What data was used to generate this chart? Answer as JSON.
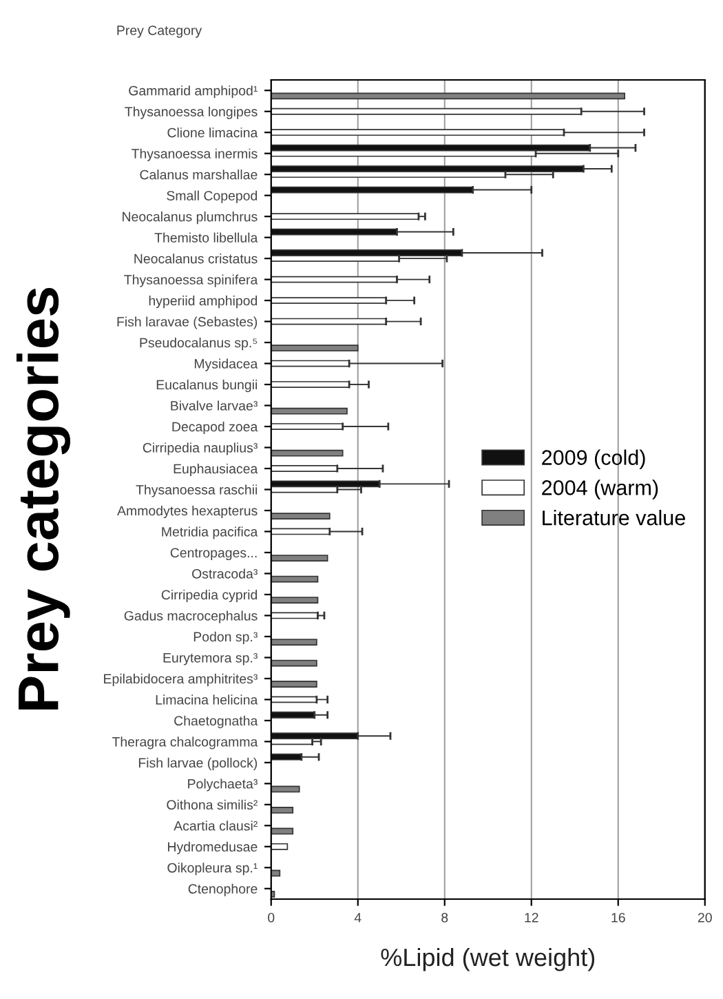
{
  "chart_data": {
    "type": "bar",
    "orientation": "horizontal",
    "title": "Prey Category",
    "xlabel": "%Lipid (wet weight)",
    "ylabel": "Prey categories",
    "categories": [
      "Gammarid amphipod¹",
      "Thysanoessa longipes",
      "Clione limacina",
      "Thysanoessa inermis",
      "Calanus marshallae",
      "Small Copepod",
      "Neocalanus plumchrus",
      "Themisto libellula",
      "Neocalanus cristatus",
      "Thysanoessa spinifera",
      "hyperiid amphipod",
      "Fish laravae (Sebastes)",
      "Pseudocalanus sp.⁵",
      "Mysidacea",
      "Eucalanus bungii",
      "Bivalve larvae³",
      "Decapod zoea",
      "Cirripedia nauplius³",
      "Euphausiacea",
      "Thysanoessa raschii",
      "Ammodytes hexapterus",
      "Metridia pacifica",
      "Centropages...",
      "Ostracoda³",
      "Cirripedia cyprid",
      "Gadus macrocephalus",
      "Podon sp.³",
      "Eurytemora sp.³",
      "Epilabidocera amphitrites³",
      "Limacina helicina",
      "Chaetognatha",
      "Theragra chalcogramma",
      "Fish larvae (pollock)",
      "Polychaeta³",
      "Oithona similis²",
      "Acartia clausi²",
      "Hydromedusae",
      "Oikopleura sp.¹",
      "Ctenophore"
    ],
    "series": [
      {
        "name": "2009 (cold)",
        "color": "#111111",
        "values": [
          null,
          null,
          null,
          14.7,
          14.4,
          9.3,
          null,
          5.8,
          8.8,
          null,
          null,
          null,
          null,
          null,
          null,
          null,
          null,
          null,
          null,
          5.0,
          null,
          null,
          null,
          null,
          null,
          null,
          null,
          null,
          null,
          null,
          2.0,
          4.0,
          1.4,
          null,
          null,
          null,
          null,
          null,
          null
        ],
        "errors": [
          null,
          null,
          null,
          2.1,
          1.3,
          2.7,
          null,
          2.6,
          3.7,
          null,
          null,
          null,
          null,
          null,
          null,
          null,
          null,
          null,
          null,
          3.2,
          null,
          null,
          null,
          null,
          null,
          null,
          null,
          null,
          null,
          null,
          0.6,
          1.5,
          0.8,
          null,
          null,
          null,
          null,
          null,
          null
        ]
      },
      {
        "name": "2004 (warm)",
        "color": "#ffffff",
        "values": [
          null,
          14.3,
          13.5,
          12.2,
          10.8,
          null,
          6.8,
          null,
          5.9,
          5.8,
          5.3,
          5.3,
          null,
          3.6,
          3.6,
          null,
          3.3,
          null,
          3.05,
          3.05,
          null,
          2.7,
          null,
          null,
          null,
          2.15,
          null,
          null,
          null,
          2.1,
          null,
          1.9,
          null,
          null,
          null,
          null,
          0.75,
          null,
          null
        ],
        "errors": [
          null,
          2.9,
          3.7,
          3.8,
          2.2,
          null,
          0.3,
          null,
          2.2,
          1.5,
          1.3,
          1.6,
          null,
          4.3,
          0.9,
          null,
          2.1,
          null,
          2.1,
          1.1,
          null,
          1.5,
          null,
          null,
          null,
          0.3,
          null,
          null,
          null,
          0.5,
          null,
          0.4,
          null,
          null,
          null,
          null,
          null,
          null,
          null
        ]
      },
      {
        "name": "Literature value",
        "color": "#808080",
        "values": [
          16.3,
          null,
          null,
          null,
          null,
          null,
          null,
          null,
          null,
          null,
          null,
          null,
          4.0,
          null,
          null,
          3.5,
          null,
          3.3,
          null,
          null,
          2.7,
          null,
          2.6,
          2.15,
          2.15,
          null,
          2.1,
          2.1,
          2.1,
          null,
          null,
          null,
          null,
          1.3,
          1.0,
          1.0,
          null,
          0.4,
          0.15
        ]
      }
    ],
    "xlim": [
      0,
      20
    ],
    "xticks": [
      0,
      4,
      8,
      12,
      16,
      20
    ],
    "grid": "x",
    "legend": "right"
  }
}
